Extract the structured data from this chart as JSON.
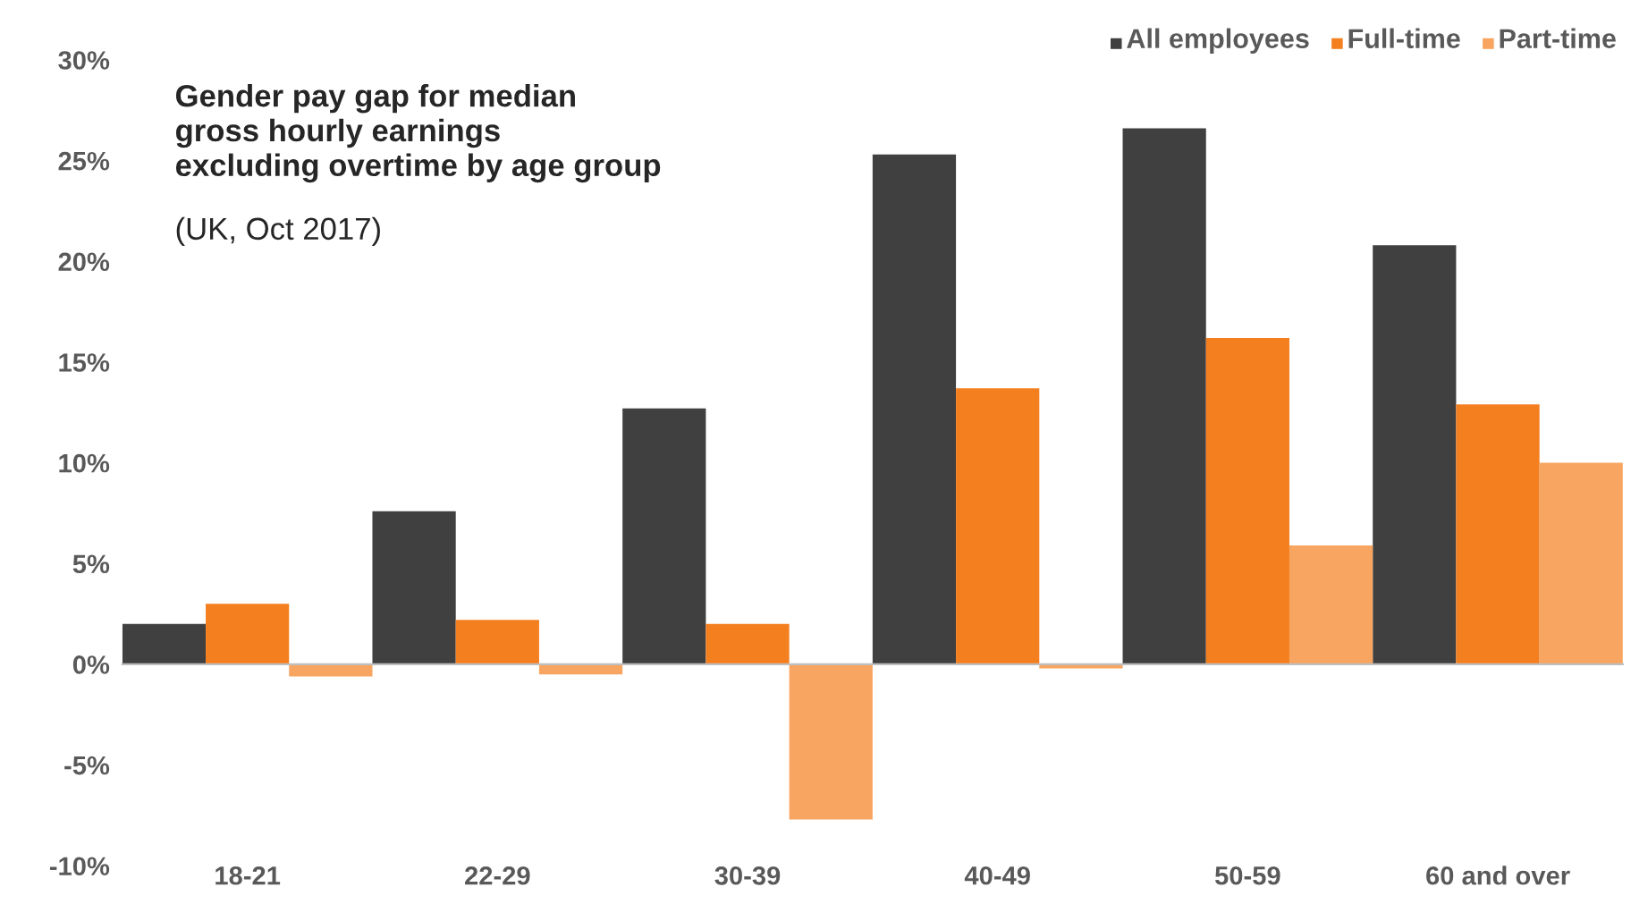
{
  "chart_data": {
    "type": "bar",
    "title": "Gender pay gap for median\ngross hourly earnings\nexcluding overtime by age group",
    "subtitle": "(UK, Oct 2017)",
    "categories": [
      "18-21",
      "22-29",
      "30-39",
      "40-49",
      "50-59",
      "60 and over"
    ],
    "series": [
      {
        "name": "All employees",
        "color": "#404040",
        "values": [
          2.0,
          7.6,
          12.7,
          25.3,
          26.6,
          20.8
        ]
      },
      {
        "name": "Full-time",
        "color": "#f47f1f",
        "values": [
          3.0,
          2.2,
          2.0,
          13.7,
          16.2,
          12.9
        ]
      },
      {
        "name": "Part-time",
        "color": "#f7a560",
        "values": [
          -0.6,
          -0.5,
          -7.7,
          -0.2,
          5.9,
          10.0
        ]
      }
    ],
    "ylim": [
      -10,
      30
    ],
    "yticks": [
      {
        "value": -10,
        "label": "-10%"
      },
      {
        "value": -5,
        "label": "-5%"
      },
      {
        "value": 0,
        "label": "0%"
      },
      {
        "value": 5,
        "label": "5%"
      },
      {
        "value": 10,
        "label": "10%"
      },
      {
        "value": 15,
        "label": "15%"
      },
      {
        "value": 20,
        "label": "20%"
      },
      {
        "value": 25,
        "label": "25%"
      },
      {
        "value": 30,
        "label": "30%"
      }
    ],
    "legend": "top right"
  }
}
